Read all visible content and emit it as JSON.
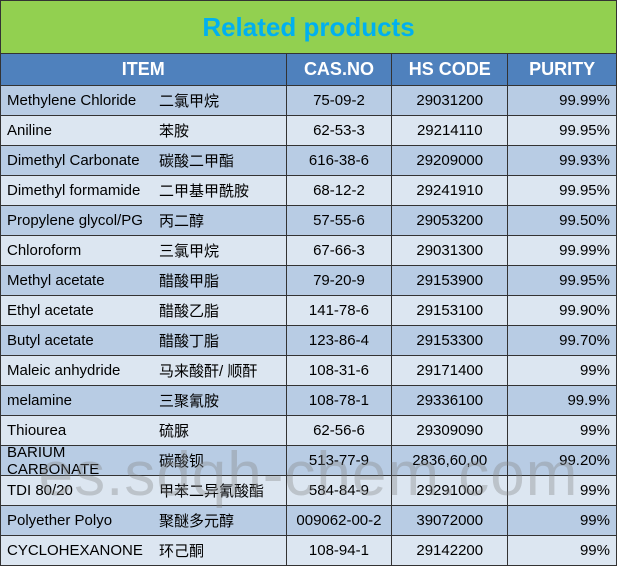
{
  "title": "Related products",
  "title_color": "#00b0f0",
  "title_bg": "#92d050",
  "header_bg": "#4f81bd",
  "header_text_color": "#ffffff",
  "row_even_bg": "#b8cce4",
  "row_odd_bg": "#dce6f1",
  "border_color": "#333333",
  "watermark": "es.sdqh-chem.com",
  "watermark_color": "rgba(130,130,130,0.35)",
  "columns": {
    "item": "ITEM",
    "cas": "CAS.NO",
    "hs": "HS CODE",
    "purity": "PURITY"
  },
  "rows": [
    {
      "en": "Methylene Chloride",
      "cn": "二氯甲烷",
      "cas": "75-09-2",
      "hs": "29031200",
      "purity": "99.99%"
    },
    {
      "en": "Aniline",
      "cn": "苯胺",
      "cas": "62-53-3",
      "hs": "29214110",
      "purity": "99.95%"
    },
    {
      "en": "Dimethyl Carbonate",
      "cn": "碳酸二甲酯",
      "cas": "616-38-6",
      "hs": "29209000",
      "purity": "99.93%"
    },
    {
      "en": "Dimethyl  formamide",
      "cn": "二甲基甲酰胺",
      "cas": "68-12-2",
      "hs": "29241910",
      "purity": "99.95%"
    },
    {
      "en": "Propylene glycol/PG",
      "cn": "丙二醇",
      "cas": "57-55-6",
      "hs": "29053200",
      "purity": "99.50%"
    },
    {
      "en": "Chloroform",
      "cn": "三氯甲烷",
      "cas": "67-66-3",
      "hs": "29031300",
      "purity": "99.99%"
    },
    {
      "en": "Methyl acetate",
      "cn": "醋酸甲脂",
      "cas": "79-20-9",
      "hs": "29153900",
      "purity": "99.95%"
    },
    {
      "en": "Ethyl   acetate",
      "cn": "醋酸乙脂",
      "cas": "141-78-6",
      "hs": "29153100",
      "purity": "99.90%"
    },
    {
      "en": "Butyl   acetate",
      "cn": "醋酸丁脂",
      "cas": "123-86-4",
      "hs": "29153300",
      "purity": "99.70%"
    },
    {
      "en": "Maleic anhydride",
      "cn": "马来酸酐/ 顺酐",
      "cas": "108-31-6",
      "hs": "29171400",
      "purity": "99%"
    },
    {
      "en": "melamine",
      "cn": "三聚氰胺",
      "cas": "108-78-1",
      "hs": "29336100",
      "purity": "99.9%"
    },
    {
      "en": "Thiourea",
      "cn": "硫脲",
      "cas": "62-56-6",
      "hs": "29309090",
      "purity": "99%"
    },
    {
      "en": "BARIUM CARBONATE",
      "cn": "碳酸钡",
      "cas": "513-77-9",
      "hs": "2836,60,00",
      "purity": "99.20%"
    },
    {
      "en": "TDI 80/20",
      "cn": "甲苯二异氰酸酯",
      "cas": "584-84-9",
      "hs": "29291000",
      "purity": "99%"
    },
    {
      "en": "Polyether Polyo",
      "cn": "聚醚多元醇",
      "cas": "009062-00-2",
      "hs": "39072000",
      "purity": "99%"
    },
    {
      "en": "CYCLOHEXANONE",
      "cn": "环己酮",
      "cas": "108-94-1",
      "hs": "29142200",
      "purity": "99%"
    }
  ]
}
